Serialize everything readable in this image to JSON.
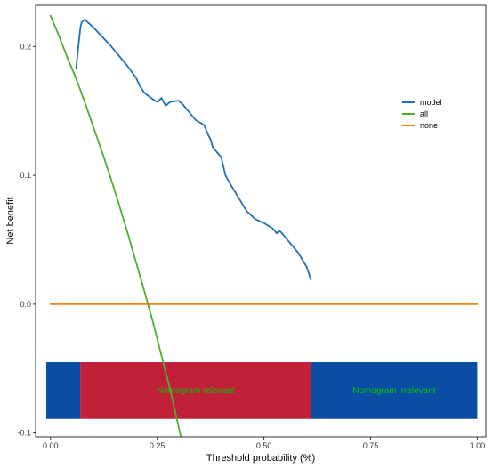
{
  "chart_data": {
    "type": "line",
    "xlabel": "Threshold probability (%)",
    "ylabel": "Net benefit",
    "xlim": [
      -0.035,
      1.02
    ],
    "ylim": [
      -0.103,
      0.232
    ],
    "x_ticks": [
      0.0,
      0.25,
      0.5,
      0.75,
      1.0
    ],
    "x_tick_labels": [
      "0.00",
      "0.25",
      "0.50",
      "0.75",
      "1.00"
    ],
    "y_ticks": [
      -0.1,
      0.0,
      0.1,
      0.2
    ],
    "y_tick_labels": [
      "-0.1",
      "0.0",
      "0.1",
      "0.2"
    ],
    "grid": false,
    "legend_position": "right",
    "series": [
      {
        "name": "model",
        "color": "#2171b5",
        "x": [
          0.06,
          0.065,
          0.07,
          0.073,
          0.08,
          0.09,
          0.1,
          0.12,
          0.14,
          0.16,
          0.18,
          0.2,
          0.21,
          0.22,
          0.24,
          0.25,
          0.26,
          0.27,
          0.28,
          0.3,
          0.31,
          0.32,
          0.34,
          0.36,
          0.37,
          0.375,
          0.38,
          0.39,
          0.4,
          0.41,
          0.42,
          0.44,
          0.46,
          0.48,
          0.5,
          0.52,
          0.53,
          0.535,
          0.54,
          0.56,
          0.58,
          0.6,
          0.61
        ],
        "y": [
          0.183,
          0.2,
          0.215,
          0.219,
          0.221,
          0.218,
          0.215,
          0.208,
          0.201,
          0.193,
          0.185,
          0.176,
          0.169,
          0.164,
          0.159,
          0.157,
          0.16,
          0.154,
          0.157,
          0.158,
          0.155,
          0.151,
          0.143,
          0.139,
          0.131,
          0.128,
          0.122,
          0.118,
          0.114,
          0.1,
          0.094,
          0.083,
          0.072,
          0.066,
          0.063,
          0.059,
          0.055,
          0.057,
          0.056,
          0.048,
          0.04,
          0.029,
          0.019
        ]
      },
      {
        "name": "all",
        "color": "#4daf2e",
        "x": [
          0.0,
          0.02,
          0.04,
          0.06,
          0.08,
          0.1,
          0.12,
          0.14,
          0.16,
          0.18,
          0.2,
          0.22,
          0.24,
          0.26,
          0.28,
          0.3,
          0.31
        ],
        "y": [
          0.224,
          0.208,
          0.191,
          0.175,
          0.157,
          0.138,
          0.119,
          0.099,
          0.078,
          0.056,
          0.033,
          0.01,
          -0.014,
          -0.04,
          -0.066,
          -0.095,
          -0.11
        ]
      },
      {
        "name": "none",
        "color": "#ff7f0e",
        "x": [
          0.0,
          1.0
        ],
        "y": [
          0.0,
          0.0
        ]
      }
    ],
    "regions": [
      {
        "x0": -0.01,
        "x1": 0.07,
        "color": "#0a4da2",
        "label": ""
      },
      {
        "x0": 0.07,
        "x1": 0.61,
        "color": "#c21f39",
        "label": "Nomogram relevant"
      },
      {
        "x0": 0.61,
        "x1": 1.0,
        "color": "#0a4da2",
        "label": "Nomogram irrelevant"
      }
    ],
    "region_band_y": [
      -0.089,
      -0.045
    ],
    "region_label_color": "#00c800"
  }
}
